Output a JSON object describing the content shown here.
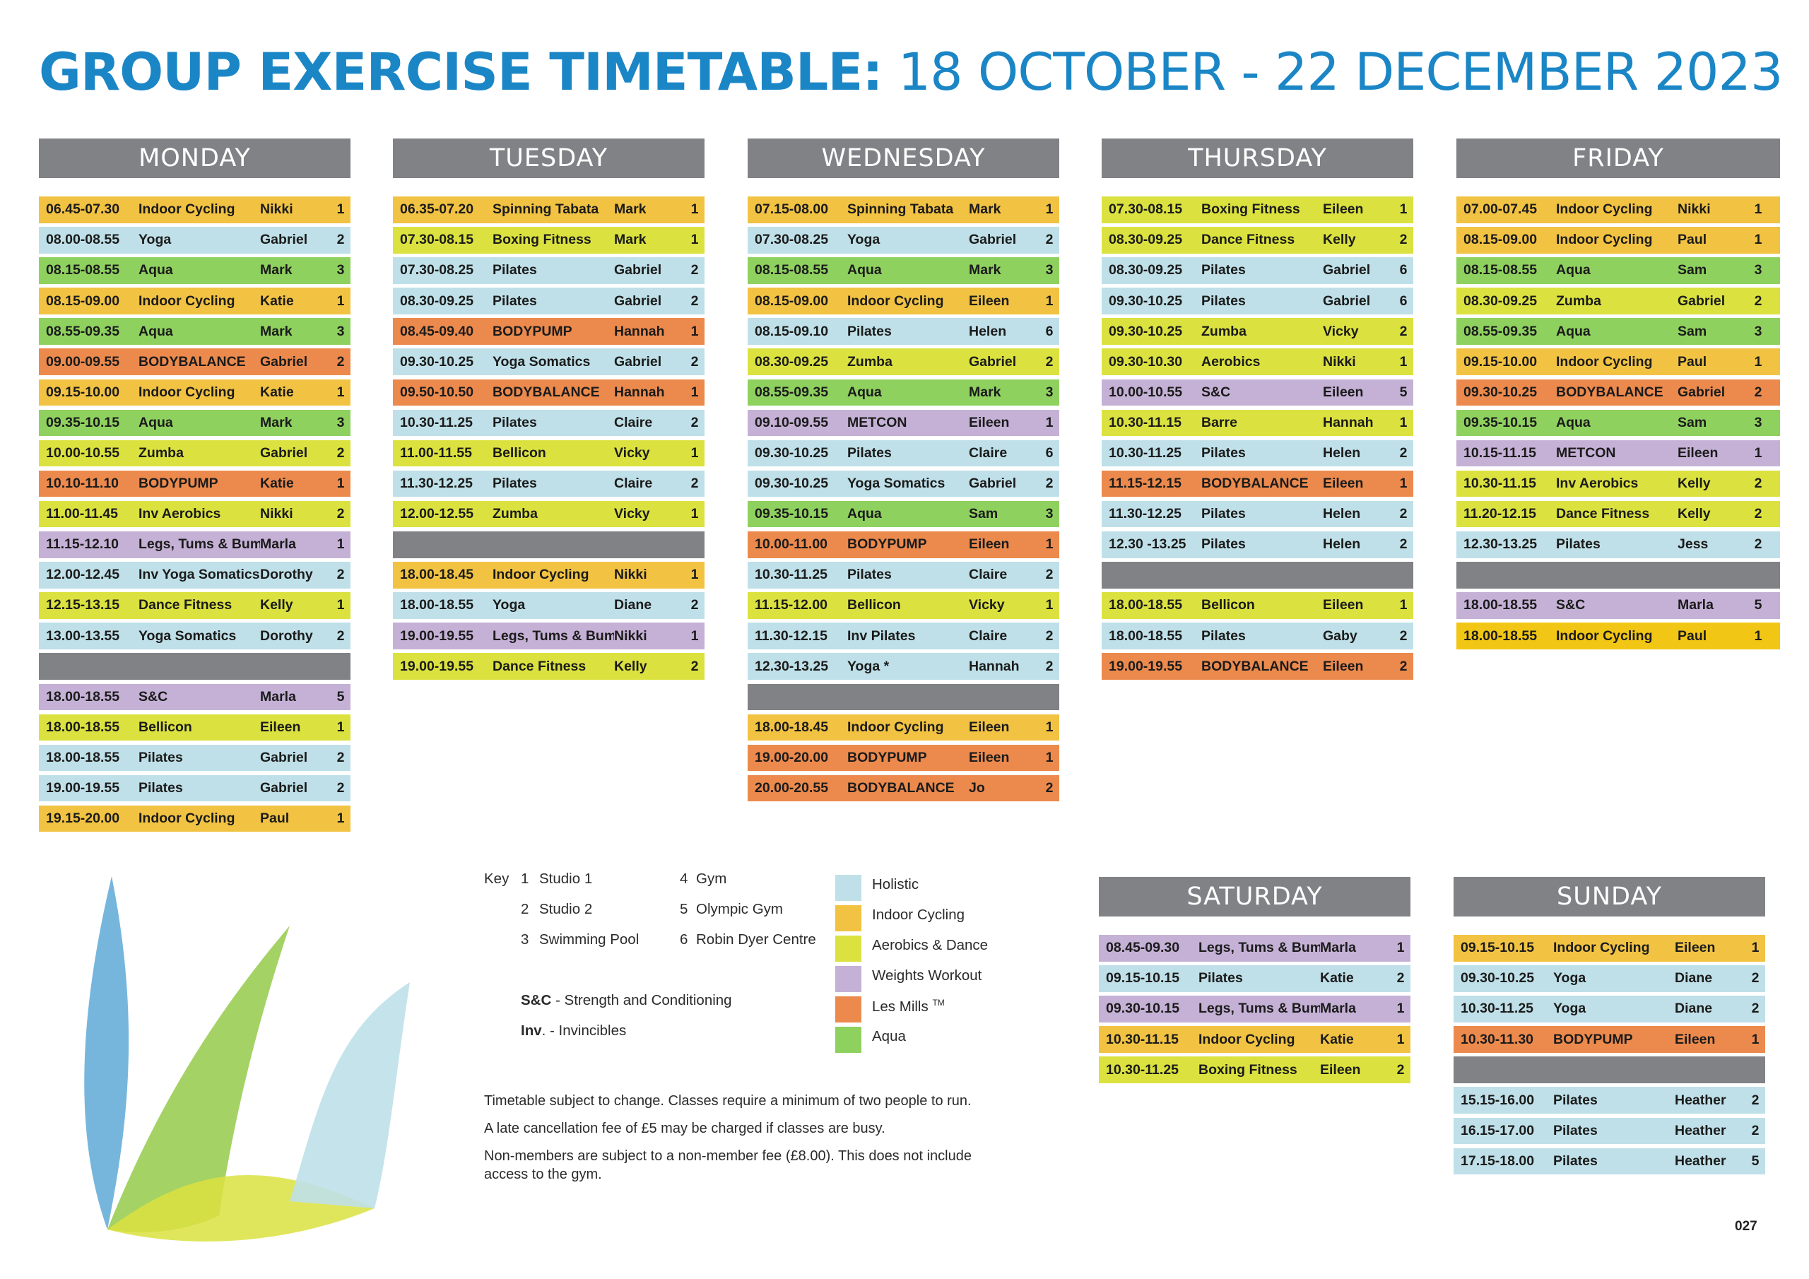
{
  "title": {
    "bold": "GROUP EXERCISE TIMETABLE:",
    "light": " 18 OCTOBER - 22 DECEMBER 2023"
  },
  "days": [
    {
      "name": "MONDAY",
      "rows": [
        {
          "time": "06.45-07.30",
          "class": "Indoor Cycling",
          "instructor": "Nikki",
          "room": "1",
          "cat": "cycling"
        },
        {
          "time": "08.00-08.55",
          "class": "Yoga",
          "instructor": "Gabriel",
          "room": "2",
          "cat": "holistic"
        },
        {
          "time": "08.15-08.55",
          "class": "Aqua",
          "instructor": "Mark",
          "room": "3",
          "cat": "aqua"
        },
        {
          "time": "08.15-09.00",
          "class": "Indoor Cycling",
          "instructor": "Katie",
          "room": "1",
          "cat": "cycling"
        },
        {
          "time": "08.55-09.35",
          "class": "Aqua",
          "instructor": "Mark",
          "room": "3",
          "cat": "aqua"
        },
        {
          "time": "09.00-09.55",
          "class": "BODYBALANCE",
          "instructor": "Gabriel",
          "room": "2",
          "cat": "lesmills"
        },
        {
          "time": "09.15-10.00",
          "class": "Indoor Cycling",
          "instructor": "Katie",
          "room": "1",
          "cat": "cycling"
        },
        {
          "time": "09.35-10.15",
          "class": "Aqua",
          "instructor": "Mark",
          "room": "3",
          "cat": "aqua"
        },
        {
          "time": "10.00-10.55",
          "class": "Zumba",
          "instructor": "Gabriel",
          "room": "2",
          "cat": "aerobics"
        },
        {
          "time": "10.10-11.10",
          "class": "BODYPUMP",
          "instructor": "Katie",
          "room": "1",
          "cat": "lesmills"
        },
        {
          "time": "11.00-11.45",
          "class": "Inv Aerobics",
          "instructor": "Nikki",
          "room": "2",
          "cat": "aerobics"
        },
        {
          "time": "11.15-12.10",
          "class": "Legs, Tums & Bums",
          "instructor": "Marla",
          "room": "1",
          "cat": "weights"
        },
        {
          "time": "12.00-12.45",
          "class": "Inv Yoga Somatics",
          "instructor": "Dorothy",
          "room": "2",
          "cat": "holistic"
        },
        {
          "time": "12.15-13.15",
          "class": "Dance Fitness",
          "instructor": "Kelly",
          "room": "1",
          "cat": "aerobics"
        },
        {
          "time": "13.00-13.55",
          "class": "Yoga Somatics",
          "instructor": "Dorothy",
          "room": "2",
          "cat": "holistic"
        },
        {
          "gap": true
        },
        {
          "time": "18.00-18.55",
          "class": "S&C",
          "instructor": "Marla",
          "room": "5",
          "cat": "weights"
        },
        {
          "time": "18.00-18.55",
          "class": "Bellicon",
          "instructor": "Eileen",
          "room": "1",
          "cat": "aerobics"
        },
        {
          "time": "18.00-18.55",
          "class": "Pilates",
          "instructor": "Gabriel",
          "room": "2",
          "cat": "holistic"
        },
        {
          "time": "19.00-19.55",
          "class": "Pilates",
          "instructor": "Gabriel",
          "room": "2",
          "cat": "holistic"
        },
        {
          "time": "19.15-20.00",
          "class": "Indoor Cycling",
          "instructor": "Paul",
          "room": "1",
          "cat": "cycling"
        }
      ]
    },
    {
      "name": "TUESDAY",
      "rows": [
        {
          "time": "06.35-07.20",
          "class": "Spinning Tabata",
          "instructor": "Mark",
          "room": "1",
          "cat": "cycling"
        },
        {
          "time": "07.30-08.15",
          "class": "Boxing Fitness",
          "instructor": "Mark",
          "room": "1",
          "cat": "aerobics"
        },
        {
          "time": "07.30-08.25",
          "class": "Pilates",
          "instructor": "Gabriel",
          "room": "2",
          "cat": "holistic"
        },
        {
          "time": "08.30-09.25",
          "class": "Pilates",
          "instructor": "Gabriel",
          "room": "2",
          "cat": "holistic"
        },
        {
          "time": "08.45-09.40",
          "class": "BODYPUMP",
          "instructor": "Hannah",
          "room": "1",
          "cat": "lesmills"
        },
        {
          "time": "09.30-10.25",
          "class": "Yoga Somatics",
          "instructor": "Gabriel",
          "room": "2",
          "cat": "holistic"
        },
        {
          "time": "09.50-10.50",
          "class": "BODYBALANCE",
          "instructor": "Hannah",
          "room": "1",
          "cat": "lesmills"
        },
        {
          "time": "10.30-11.25",
          "class": "Pilates",
          "instructor": "Claire",
          "room": "2",
          "cat": "holistic"
        },
        {
          "time": "11.00-11.55",
          "class": "Bellicon",
          "instructor": "Vicky",
          "room": "1",
          "cat": "aerobics"
        },
        {
          "time": "11.30-12.25",
          "class": "Pilates",
          "instructor": "Claire",
          "room": "2",
          "cat": "holistic"
        },
        {
          "time": "12.00-12.55",
          "class": "Zumba",
          "instructor": "Vicky",
          "room": "1",
          "cat": "aerobics"
        },
        {
          "gap": true
        },
        {
          "time": "18.00-18.45",
          "class": "Indoor Cycling",
          "instructor": "Nikki",
          "room": "1",
          "cat": "cycling"
        },
        {
          "time": "18.00-18.55",
          "class": "Yoga",
          "instructor": "Diane",
          "room": "2",
          "cat": "holistic"
        },
        {
          "time": "19.00-19.55",
          "class": "Legs, Tums & Bums",
          "instructor": "Nikki",
          "room": "1",
          "cat": "weights"
        },
        {
          "time": "19.00-19.55",
          "class": "Dance Fitness",
          "instructor": "Kelly",
          "room": "2",
          "cat": "aerobics"
        }
      ]
    },
    {
      "name": "WEDNESDAY",
      "rows": [
        {
          "time": "07.15-08.00",
          "class": "Spinning Tabata",
          "instructor": "Mark",
          "room": "1",
          "cat": "cycling"
        },
        {
          "time": "07.30-08.25",
          "class": "Yoga",
          "instructor": "Gabriel",
          "room": "2",
          "cat": "holistic"
        },
        {
          "time": "08.15-08.55",
          "class": "Aqua",
          "instructor": "Mark",
          "room": "3",
          "cat": "aqua"
        },
        {
          "time": "08.15-09.00",
          "class": "Indoor Cycling",
          "instructor": "Eileen",
          "room": "1",
          "cat": "cycling"
        },
        {
          "time": "08.15-09.10",
          "class": "Pilates",
          "instructor": "Helen",
          "room": "6",
          "cat": "holistic"
        },
        {
          "time": "08.30-09.25",
          "class": "Zumba",
          "instructor": "Gabriel",
          "room": "2",
          "cat": "aerobics"
        },
        {
          "time": "08.55-09.35",
          "class": "Aqua",
          "instructor": "Mark",
          "room": "3",
          "cat": "aqua"
        },
        {
          "time": "09.10-09.55",
          "class": "METCON",
          "instructor": "Eileen",
          "room": "1",
          "cat": "weights"
        },
        {
          "time": "09.30-10.25",
          "class": "Pilates",
          "instructor": "Claire",
          "room": "6",
          "cat": "holistic"
        },
        {
          "time": "09.30-10.25",
          "class": "Yoga Somatics",
          "instructor": "Gabriel",
          "room": "2",
          "cat": "holistic"
        },
        {
          "time": "09.35-10.15",
          "class": "Aqua",
          "instructor": "Sam",
          "room": "3",
          "cat": "aqua"
        },
        {
          "time": "10.00-11.00",
          "class": "BODYPUMP",
          "instructor": "Eileen",
          "room": "1",
          "cat": "lesmills"
        },
        {
          "time": "10.30-11.25",
          "class": "Pilates",
          "instructor": "Claire",
          "room": "2",
          "cat": "holistic"
        },
        {
          "time": "11.15-12.00",
          "class": "Bellicon",
          "instructor": "Vicky",
          "room": "1",
          "cat": "aerobics"
        },
        {
          "time": "11.30-12.15",
          "class": "Inv Pilates",
          "instructor": "Claire",
          "room": "2",
          "cat": "holistic"
        },
        {
          "time": "12.30-13.25",
          "class": "Yoga *",
          "instructor": "Hannah",
          "room": "2",
          "cat": "holistic"
        },
        {
          "gap": true
        },
        {
          "time": "18.00-18.45",
          "class": "Indoor Cycling",
          "instructor": "Eileen",
          "room": "1",
          "cat": "cycling"
        },
        {
          "time": "19.00-20.00",
          "class": "BODYPUMP",
          "instructor": "Eileen",
          "room": "1",
          "cat": "lesmills"
        },
        {
          "time": "20.00-20.55",
          "class": "BODYBALANCE",
          "instructor": "Jo",
          "room": "2",
          "cat": "lesmills"
        }
      ]
    },
    {
      "name": "THURSDAY",
      "rows": [
        {
          "time": "07.30-08.15",
          "class": "Boxing Fitness",
          "instructor": "Eileen",
          "room": "1",
          "cat": "aerobics"
        },
        {
          "time": "08.30-09.25",
          "class": "Dance Fitness",
          "instructor": "Kelly",
          "room": "2",
          "cat": "aerobics"
        },
        {
          "time": "08.30-09.25",
          "class": "Pilates",
          "instructor": "Gabriel",
          "room": "6",
          "cat": "holistic"
        },
        {
          "time": "09.30-10.25",
          "class": "Pilates",
          "instructor": "Gabriel",
          "room": "6",
          "cat": "holistic"
        },
        {
          "time": "09.30-10.25",
          "class": "Zumba",
          "instructor": "Vicky",
          "room": "2",
          "cat": "aerobics"
        },
        {
          "time": "09.30-10.30",
          "class": "Aerobics",
          "instructor": "Nikki",
          "room": "1",
          "cat": "aerobics"
        },
        {
          "time": "10.00-10.55",
          "class": "S&C",
          "instructor": "Eileen",
          "room": "5",
          "cat": "weights"
        },
        {
          "time": "10.30-11.15",
          "class": "Barre",
          "instructor": "Hannah",
          "room": "1",
          "cat": "aerobics"
        },
        {
          "time": "10.30-11.25",
          "class": "Pilates",
          "instructor": "Helen",
          "room": "2",
          "cat": "holistic"
        },
        {
          "time": "11.15-12.15",
          "class": "BODYBALANCE",
          "instructor": "Eileen",
          "room": "1",
          "cat": "lesmills"
        },
        {
          "time": "11.30-12.25",
          "class": "Pilates",
          "instructor": "Helen",
          "room": "2",
          "cat": "holistic"
        },
        {
          "time": "12.30 -13.25",
          "class": "Pilates",
          "instructor": "Helen",
          "room": "2",
          "cat": "holistic"
        },
        {
          "gap": true
        },
        {
          "time": "18.00-18.55",
          "class": "Bellicon",
          "instructor": "Eileen",
          "room": "1",
          "cat": "aerobics"
        },
        {
          "time": "18.00-18.55",
          "class": "Pilates",
          "instructor": "Gaby",
          "room": "2",
          "cat": "holistic"
        },
        {
          "time": "19.00-19.55",
          "class": "BODYBALANCE",
          "instructor": "Eileen",
          "room": "2",
          "cat": "lesmills"
        }
      ]
    },
    {
      "name": "FRIDAY",
      "rows": [
        {
          "time": "07.00-07.45",
          "class": "Indoor Cycling",
          "instructor": "Nikki",
          "room": "1",
          "cat": "cycling"
        },
        {
          "time": "08.15-09.00",
          "class": "Indoor Cycling",
          "instructor": "Paul",
          "room": "1",
          "cat": "cycling"
        },
        {
          "time": "08.15-08.55",
          "class": "Aqua",
          "instructor": "Sam",
          "room": "3",
          "cat": "aqua"
        },
        {
          "time": "08.30-09.25",
          "class": "Zumba",
          "instructor": "Gabriel",
          "room": "2",
          "cat": "aerobics"
        },
        {
          "time": "08.55-09.35",
          "class": "Aqua",
          "instructor": "Sam",
          "room": "3",
          "cat": "aqua"
        },
        {
          "time": "09.15-10.00",
          "class": "Indoor Cycling",
          "instructor": "Paul",
          "room": "1",
          "cat": "cycling"
        },
        {
          "time": "09.30-10.25",
          "class": "BODYBALANCE",
          "instructor": "Gabriel",
          "room": "2",
          "cat": "lesmills"
        },
        {
          "time": "09.35-10.15",
          "class": "Aqua",
          "instructor": "Sam",
          "room": "3",
          "cat": "aqua"
        },
        {
          "time": "10.15-11.15",
          "class": "METCON",
          "instructor": "Eileen",
          "room": "1",
          "cat": "weights"
        },
        {
          "time": "10.30-11.15",
          "class": "Inv Aerobics",
          "instructor": "Kelly",
          "room": "2",
          "cat": "aerobics"
        },
        {
          "time": "11.20-12.15",
          "class": "Dance Fitness",
          "instructor": "Kelly",
          "room": "2",
          "cat": "aerobics"
        },
        {
          "time": "12.30-13.25",
          "class": "Pilates",
          "instructor": "Jess",
          "room": "2",
          "cat": "holistic"
        },
        {
          "gap": true
        },
        {
          "time": "18.00-18.55",
          "class": "S&C",
          "instructor": "Marla",
          "room": "5",
          "cat": "weights"
        },
        {
          "time": "18.00-18.55",
          "class": "Indoor Cycling",
          "instructor": "Paul",
          "room": "1",
          "cat": "cycling2"
        }
      ]
    },
    {
      "name": "SATURDAY",
      "rows": [
        {
          "time": "08.45-09.30",
          "class": "Legs, Tums & Bums",
          "instructor": "Marla",
          "room": "1",
          "cat": "weights"
        },
        {
          "time": "09.15-10.15",
          "class": "Pilates",
          "instructor": "Katie",
          "room": "2",
          "cat": "holistic"
        },
        {
          "time": "09.30-10.15",
          "class": "Legs, Tums & Bums",
          "instructor": "Marla",
          "room": "1",
          "cat": "weights"
        },
        {
          "time": "10.30-11.15",
          "class": "Indoor Cycling",
          "instructor": "Katie",
          "room": "1",
          "cat": "cycling"
        },
        {
          "time": "10.30-11.25",
          "class": "Boxing Fitness",
          "instructor": "Eileen",
          "room": "2",
          "cat": "aerobics"
        }
      ]
    },
    {
      "name": "SUNDAY",
      "rows": [
        {
          "time": "09.15-10.15",
          "class": "Indoor Cycling",
          "instructor": "Eileen",
          "room": "1",
          "cat": "cycling"
        },
        {
          "time": "09.30-10.25",
          "class": "Yoga",
          "instructor": "Diane",
          "room": "2",
          "cat": "holistic"
        },
        {
          "time": "10.30-11.25",
          "class": "Yoga",
          "instructor": "Diane",
          "room": "2",
          "cat": "holistic"
        },
        {
          "time": "10.30-11.30",
          "class": "BODYPUMP",
          "instructor": "Eileen",
          "room": "1",
          "cat": "lesmills"
        },
        {
          "gap": true
        },
        {
          "time": "15.15-16.00",
          "class": "Pilates",
          "instructor": "Heather",
          "room": "2",
          "cat": "holistic"
        },
        {
          "time": "16.15-17.00",
          "class": "Pilates",
          "instructor": "Heather",
          "room": "2",
          "cat": "holistic"
        },
        {
          "time": "17.15-18.00",
          "class": "Pilates",
          "instructor": "Heather",
          "room": "5",
          "cat": "holistic"
        }
      ]
    }
  ],
  "key": {
    "label": "Key",
    "rooms": [
      {
        "num": "1",
        "name": "Studio 1"
      },
      {
        "num": "2",
        "name": "Studio 2"
      },
      {
        "num": "3",
        "name": "Swimming Pool"
      },
      {
        "num": "4",
        "name": "Gym"
      },
      {
        "num": "5",
        "name": "Olympic Gym"
      },
      {
        "num": "6",
        "name": "Robin Dyer Centre"
      }
    ],
    "abbreviations": [
      {
        "abbr": "S&C",
        "text": " - Strength and Conditioning"
      },
      {
        "abbr": "Inv",
        "text": ". - Invincibles"
      }
    ],
    "categories": [
      {
        "label": "Holistic",
        "color": "#bfe0e8"
      },
      {
        "label": "Indoor Cycling",
        "color": "#f2c343"
      },
      {
        "label": "Aerobics & Dance",
        "color": "#dbe23f"
      },
      {
        "label": "Weights Workout",
        "color": "#c5b1d6"
      },
      {
        "label": "Les Mills",
        "tm": "TM",
        "color": "#ec8a4d"
      },
      {
        "label": "Aqua",
        "color": "#8fd15f"
      }
    ]
  },
  "notes": [
    "Timetable subject to change. Classes require a minimum of two people to run.",
    "A late cancellation fee of £5 may be charged if classes are busy.",
    "Non-members are subject to a non-member fee (£8.00). This does not include access to the gym."
  ],
  "page_number": "027",
  "colors": {
    "title_blue": "#1b86c6",
    "header_grey": "#818285",
    "holistic": "#bfe0e8",
    "cycling": "#f2c343",
    "aerobics": "#dbe23f",
    "weights": "#c5b1d6",
    "lesmills": "#ec8a4d",
    "aqua": "#8fd15f"
  }
}
